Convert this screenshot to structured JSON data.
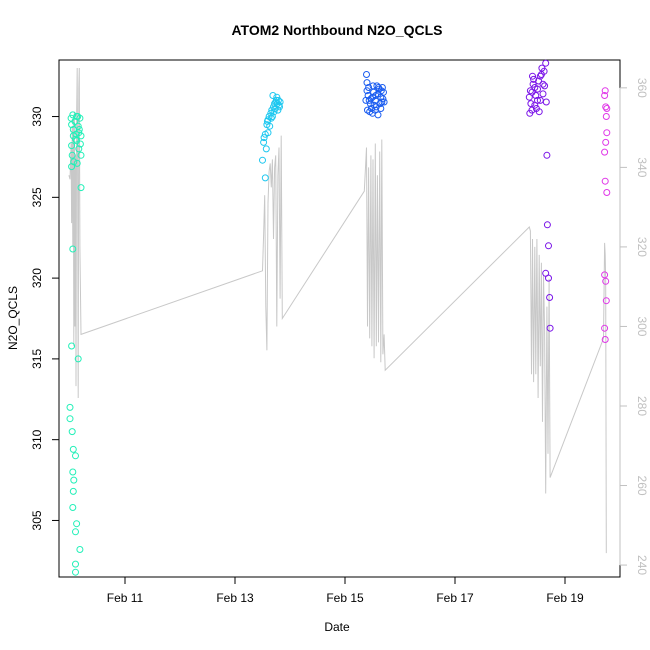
{
  "chart_data": {
    "type": "scatter",
    "title": "ATOM2 Northbound N2O_QCLS",
    "xlabel": "Date",
    "ylabel": "N2O_QCLS",
    "x_ticks": [
      "Feb 11",
      "Feb 13",
      "Feb 15",
      "Feb 17",
      "Feb 19"
    ],
    "xlim_days": [
      9.8,
      20.0
    ],
    "ylim": [
      301.5,
      333.5
    ],
    "y_ticks": [
      305,
      310,
      315,
      320,
      325,
      330
    ],
    "y2lim": [
      237,
      367
    ],
    "y2_ticks": [
      240,
      260,
      280,
      300,
      320,
      340,
      360
    ],
    "y2_color": "#c0c0c0",
    "grid": false,
    "series": [
      {
        "color": "#22f0b8",
        "points": [
          [
            10.02,
            329.9
          ],
          [
            10.03,
            329.5
          ],
          [
            10.03,
            328.2
          ],
          [
            10.04,
            327.6
          ],
          [
            10.03,
            326.9
          ],
          [
            10.05,
            330.1
          ],
          [
            10.06,
            329.2
          ],
          [
            10.06,
            328.8
          ],
          [
            10.07,
            327.2
          ],
          [
            10.05,
            321.8
          ],
          [
            10.03,
            315.8
          ],
          [
            10.0,
            312.0
          ],
          [
            10.0,
            311.3
          ],
          [
            10.04,
            310.5
          ],
          [
            10.06,
            309.4
          ],
          [
            10.05,
            308.0
          ],
          [
            10.06,
            306.8
          ],
          [
            10.05,
            305.8
          ],
          [
            10.07,
            307.5
          ],
          [
            10.1,
            309.0
          ],
          [
            10.12,
            304.8
          ],
          [
            10.1,
            304.3
          ],
          [
            10.1,
            302.3
          ],
          [
            10.1,
            301.8
          ],
          [
            10.18,
            303.2
          ],
          [
            10.15,
            315.0
          ],
          [
            10.2,
            325.6
          ],
          [
            10.12,
            330.0
          ],
          [
            10.15,
            329.4
          ],
          [
            10.18,
            329.9
          ],
          [
            10.1,
            328.6
          ],
          [
            10.16,
            328.0
          ],
          [
            10.2,
            327.6
          ],
          [
            10.19,
            328.3
          ],
          [
            10.13,
            327.1
          ],
          [
            10.14,
            330.0
          ],
          [
            10.16,
            329.0
          ],
          [
            10.12,
            328.5
          ],
          [
            10.17,
            329.2
          ],
          [
            10.09,
            329.7
          ],
          [
            10.11,
            328.9
          ],
          [
            10.2,
            328.8
          ]
        ]
      },
      {
        "color": "#1ec8f0",
        "points": [
          [
            13.5,
            327.3
          ],
          [
            13.52,
            328.4
          ],
          [
            13.55,
            328.9
          ],
          [
            13.58,
            329.5
          ],
          [
            13.6,
            329.8
          ],
          [
            13.62,
            330.0
          ],
          [
            13.65,
            330.2
          ],
          [
            13.67,
            330.4
          ],
          [
            13.7,
            330.6
          ],
          [
            13.72,
            330.8
          ],
          [
            13.75,
            331.0
          ],
          [
            13.78,
            330.4
          ],
          [
            13.8,
            330.7
          ],
          [
            13.82,
            330.9
          ],
          [
            13.55,
            326.2
          ],
          [
            13.57,
            328.0
          ],
          [
            13.6,
            329.0
          ],
          [
            13.63,
            329.4
          ],
          [
            13.68,
            330.0
          ],
          [
            13.71,
            330.3
          ],
          [
            13.74,
            330.9
          ],
          [
            13.76,
            331.2
          ],
          [
            13.79,
            331.0
          ],
          [
            13.81,
            330.6
          ],
          [
            13.53,
            328.7
          ],
          [
            13.59,
            329.7
          ],
          [
            13.66,
            329.9
          ],
          [
            13.73,
            330.5
          ],
          [
            13.69,
            331.3
          ],
          [
            13.77,
            330.8
          ]
        ]
      },
      {
        "color": "#1a5cf0",
        "points": [
          [
            15.4,
            331.6
          ],
          [
            15.42,
            331.3
          ],
          [
            15.44,
            331.0
          ],
          [
            15.46,
            330.8
          ],
          [
            15.48,
            330.5
          ],
          [
            15.5,
            331.2
          ],
          [
            15.52,
            331.5
          ],
          [
            15.55,
            331.0
          ],
          [
            15.57,
            330.6
          ],
          [
            15.6,
            331.4
          ],
          [
            15.62,
            331.7
          ],
          [
            15.65,
            331.2
          ],
          [
            15.67,
            330.9
          ],
          [
            15.7,
            331.5
          ],
          [
            15.45,
            330.3
          ],
          [
            15.5,
            330.2
          ],
          [
            15.55,
            330.4
          ],
          [
            15.6,
            330.1
          ],
          [
            15.65,
            330.5
          ],
          [
            15.4,
            332.1
          ],
          [
            15.43,
            331.8
          ],
          [
            15.47,
            331.1
          ],
          [
            15.51,
            331.9
          ],
          [
            15.56,
            331.3
          ],
          [
            15.61,
            331.8
          ],
          [
            15.66,
            331.6
          ],
          [
            15.69,
            331.1
          ],
          [
            15.38,
            331.0
          ],
          [
            15.41,
            330.4
          ],
          [
            15.53,
            330.7
          ],
          [
            15.58,
            331.9
          ],
          [
            15.64,
            330.8
          ],
          [
            15.68,
            331.8
          ],
          [
            15.71,
            330.9
          ],
          [
            15.39,
            332.6
          ]
        ]
      },
      {
        "color": "#7a14e8",
        "points": [
          [
            18.35,
            331.2
          ],
          [
            18.38,
            330.8
          ],
          [
            18.4,
            331.5
          ],
          [
            18.42,
            332.0
          ],
          [
            18.45,
            331.8
          ],
          [
            18.48,
            330.5
          ],
          [
            18.5,
            331.0
          ],
          [
            18.52,
            332.2
          ],
          [
            18.55,
            332.5
          ],
          [
            18.58,
            333.0
          ],
          [
            18.6,
            331.4
          ],
          [
            18.62,
            332.8
          ],
          [
            18.65,
            333.3
          ],
          [
            18.67,
            327.6
          ],
          [
            18.68,
            323.3
          ],
          [
            18.7,
            322.0
          ],
          [
            18.65,
            320.3
          ],
          [
            18.7,
            320.0
          ],
          [
            18.72,
            318.8
          ],
          [
            18.73,
            316.9
          ],
          [
            18.4,
            330.4
          ],
          [
            18.45,
            330.7
          ],
          [
            18.5,
            331.7
          ],
          [
            18.55,
            331.0
          ],
          [
            18.6,
            332.0
          ],
          [
            18.37,
            331.6
          ],
          [
            18.43,
            332.3
          ],
          [
            18.47,
            331.3
          ],
          [
            18.53,
            330.3
          ],
          [
            18.57,
            332.6
          ],
          [
            18.63,
            331.9
          ],
          [
            18.66,
            330.9
          ],
          [
            18.36,
            330.2
          ],
          [
            18.41,
            332.5
          ]
        ]
      },
      {
        "color": "#e038e8",
        "points": [
          [
            19.72,
            331.3
          ],
          [
            19.74,
            330.6
          ],
          [
            19.75,
            330.0
          ],
          [
            19.76,
            329.0
          ],
          [
            19.74,
            328.4
          ],
          [
            19.72,
            327.8
          ],
          [
            19.73,
            326.0
          ],
          [
            19.76,
            325.3
          ],
          [
            19.72,
            320.2
          ],
          [
            19.74,
            319.8
          ],
          [
            19.75,
            318.6
          ],
          [
            19.72,
            316.9
          ],
          [
            19.73,
            316.2
          ],
          [
            19.76,
            330.5
          ],
          [
            19.73,
            331.6
          ]
        ]
      }
    ],
    "secondary_series": {
      "color": "#c8c8c8",
      "axis": "right",
      "points": [
        [
          9.98,
          338
        ],
        [
          10.0,
          337
        ],
        [
          10.02,
          346
        ],
        [
          10.03,
          326
        ],
        [
          10.04,
          350
        ],
        [
          10.05,
          320
        ],
        [
          10.06,
          352
        ],
        [
          10.07,
          295
        ],
        [
          10.08,
          354
        ],
        [
          10.09,
          300
        ],
        [
          10.1,
          343
        ],
        [
          10.11,
          285
        ],
        [
          10.12,
          352
        ],
        [
          10.13,
          365
        ],
        [
          10.14,
          330
        ],
        [
          10.15,
          282
        ],
        [
          10.16,
          360
        ],
        [
          10.17,
          365
        ],
        [
          10.18,
          320
        ],
        [
          10.2,
          298
        ],
        [
          13.5,
          314
        ],
        [
          13.52,
          323
        ],
        [
          13.54,
          333
        ],
        [
          13.56,
          305
        ],
        [
          13.58,
          294
        ],
        [
          13.6,
          331
        ],
        [
          13.62,
          339
        ],
        [
          13.64,
          341
        ],
        [
          13.66,
          335
        ],
        [
          13.68,
          342
        ],
        [
          13.7,
          322
        ],
        [
          13.72,
          340
        ],
        [
          13.74,
          343
        ],
        [
          13.76,
          300
        ],
        [
          13.78,
          338
        ],
        [
          13.8,
          345
        ],
        [
          13.82,
          307
        ],
        [
          13.84,
          348
        ],
        [
          13.86,
          302
        ],
        [
          15.35,
          334
        ],
        [
          15.37,
          339
        ],
        [
          15.39,
          345
        ],
        [
          15.41,
          300
        ],
        [
          15.43,
          340
        ],
        [
          15.45,
          297
        ],
        [
          15.47,
          343
        ],
        [
          15.49,
          295
        ],
        [
          15.51,
          342
        ],
        [
          15.53,
          292
        ],
        [
          15.55,
          346
        ],
        [
          15.57,
          295
        ],
        [
          15.59,
          338
        ],
        [
          15.61,
          296
        ],
        [
          15.63,
          344
        ],
        [
          15.65,
          291
        ],
        [
          15.67,
          347
        ],
        [
          15.69,
          293
        ],
        [
          15.71,
          298
        ],
        [
          15.73,
          289
        ],
        [
          18.35,
          325
        ],
        [
          18.37,
          324
        ],
        [
          18.39,
          288
        ],
        [
          18.41,
          322
        ],
        [
          18.43,
          286
        ],
        [
          18.45,
          320
        ],
        [
          18.47,
          288
        ],
        [
          18.49,
          322
        ],
        [
          18.51,
          282
        ],
        [
          18.53,
          318
        ],
        [
          18.55,
          290
        ],
        [
          18.57,
          316
        ],
        [
          18.59,
          276
        ],
        [
          18.61,
          313
        ],
        [
          18.63,
          299
        ],
        [
          18.65,
          258
        ],
        [
          18.67,
          305
        ],
        [
          18.69,
          268
        ],
        [
          18.71,
          312
        ],
        [
          18.73,
          262
        ],
        [
          19.7,
          297
        ],
        [
          19.71,
          310
        ],
        [
          19.72,
          321
        ],
        [
          19.73,
          318
        ],
        [
          19.74,
          311
        ],
        [
          19.75,
          243
        ]
      ]
    }
  }
}
